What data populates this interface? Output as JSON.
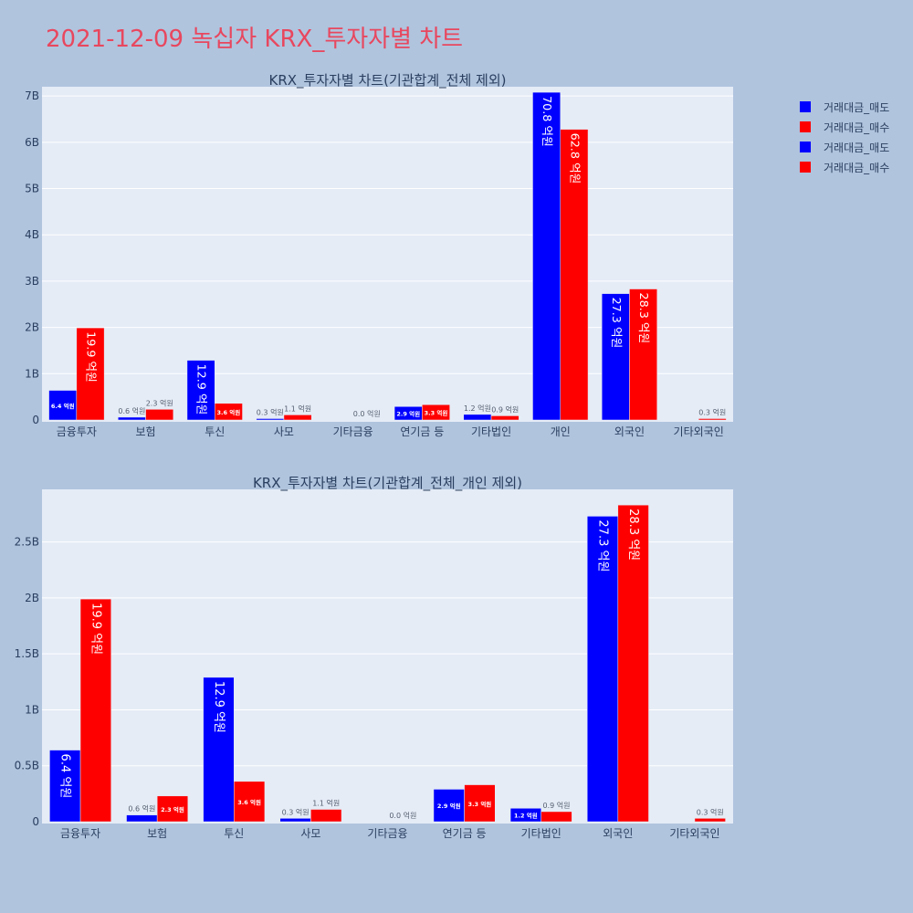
{
  "page_title": "2021-12-09 녹십자 KRX_투자자별 차트",
  "legend": [
    {
      "label": "거래대금_매도",
      "color": "#0000ff"
    },
    {
      "label": "거래대금_매수",
      "color": "#ff0000"
    },
    {
      "label": "거래대금_매도",
      "color": "#0000ff"
    },
    {
      "label": "거래대금_매수",
      "color": "#ff0000"
    }
  ],
  "chart_data": [
    {
      "type": "bar",
      "title": "KRX_투자자별 차트(기관합계_전체 제외)",
      "categories": [
        "금융투자",
        "보험",
        "투신",
        "사모",
        "기타금융",
        "연기금 등",
        "기타법인",
        "개인",
        "외국인",
        "기타외국인"
      ],
      "series": [
        {
          "name": "거래대금_매도",
          "color": "#0000ff",
          "values": [
            0.64,
            0.06,
            1.29,
            0.03,
            0.0,
            0.29,
            0.12,
            7.08,
            2.73,
            0.0
          ],
          "labels": [
            "6.4 억원",
            "0.6 억원",
            "12.9 억원",
            "0.3 억원",
            "",
            "2.9 억원",
            "1.2 억원",
            "70.8 억원",
            "27.3 억원",
            ""
          ]
        },
        {
          "name": "거래대금_매수",
          "color": "#ff0000",
          "values": [
            1.99,
            0.23,
            0.36,
            0.11,
            0.0,
            0.33,
            0.09,
            6.28,
            2.83,
            0.03
          ],
          "labels": [
            "19.9 억원",
            "2.3 억원",
            "3.6 억원",
            "1.1 억원",
            "0.0 억원",
            "3.3 억원",
            "0.9 억원",
            "62.8 억원",
            "28.3 억원",
            "0.3 억원"
          ]
        }
      ],
      "ylim": [
        0,
        7.2
      ],
      "yticks": [
        0,
        1,
        2,
        3,
        4,
        5,
        6,
        7
      ],
      "ytick_labels": [
        "0",
        "1B",
        "2B",
        "3B",
        "4B",
        "5B",
        "6B",
        "7B"
      ],
      "grid": true
    },
    {
      "type": "bar",
      "title": "KRX_투자자별 차트(기관합계_전체_개인 제외)",
      "categories": [
        "금융투자",
        "보험",
        "투신",
        "사모",
        "기타금융",
        "연기금 등",
        "기타법인",
        "외국인",
        "기타외국인"
      ],
      "series": [
        {
          "name": "거래대금_매도",
          "color": "#0000ff",
          "values": [
            0.64,
            0.06,
            1.29,
            0.03,
            0.0,
            0.29,
            0.12,
            2.73,
            0.0
          ],
          "labels": [
            "6.4 억원",
            "0.6 억원",
            "12.9 억원",
            "0.3 억원",
            "",
            "2.9 억원",
            "1.2 억원",
            "27.3 억원",
            ""
          ]
        },
        {
          "name": "거래대금_매수",
          "color": "#ff0000",
          "values": [
            1.99,
            0.23,
            0.36,
            0.11,
            0.0,
            0.33,
            0.09,
            2.83,
            0.03
          ],
          "labels": [
            "19.9 억원",
            "2.3 억원",
            "3.6 억원",
            "1.1 억원",
            "0.0 억원",
            "3.3 억원",
            "0.9 억원",
            "28.3 억원",
            "0.3 억원"
          ]
        }
      ],
      "ylim": [
        0,
        2.97
      ],
      "yticks": [
        0,
        0.5,
        1,
        1.5,
        2,
        2.5
      ],
      "ytick_labels": [
        "0",
        "0.5B",
        "1B",
        "1.5B",
        "2B",
        "2.5B"
      ],
      "grid": true
    }
  ]
}
